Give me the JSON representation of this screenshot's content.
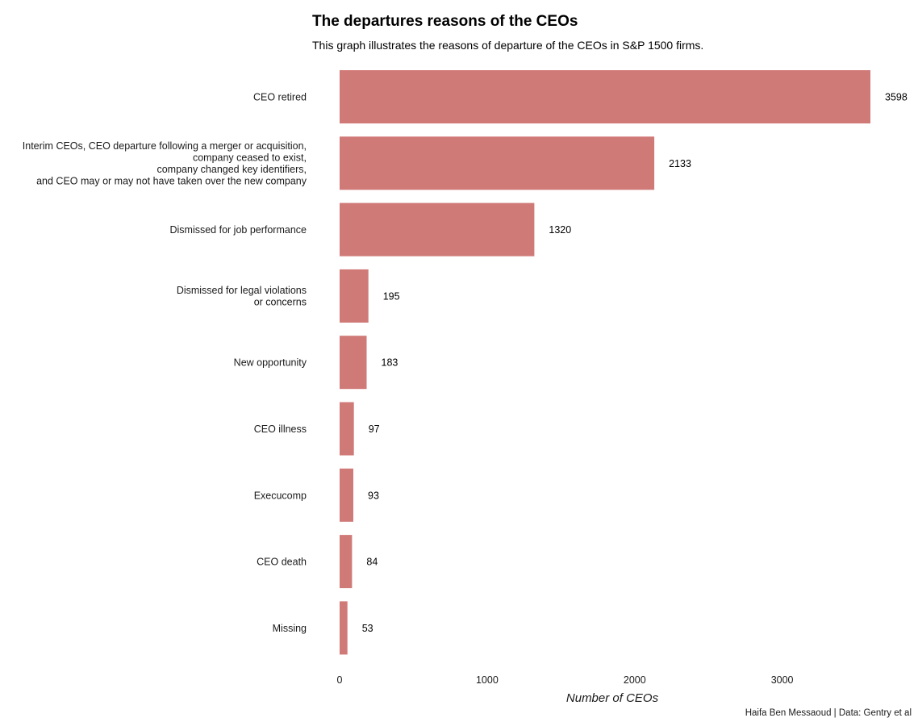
{
  "chart_data": {
    "type": "bar",
    "orientation": "horizontal",
    "title": "The departures reasons of the CEOs",
    "subtitle": "This graph illustrates the reasons of departure of the CEOs in S&P 1500 firms.",
    "xlabel": "Number of CEOs",
    "ylabel": "",
    "caption": "Haifa Ben Messaoud | Data: Gentry et al",
    "categories": [
      [
        "CEO retired"
      ],
      [
        "Interim CEOs, CEO departure following a merger or acquisition,",
        "company ceased to exist,",
        "company changed key identifiers,",
        "and CEO may or may not have taken over the new company"
      ],
      [
        "Dismissed for job performance"
      ],
      [
        "Dismissed for legal violations",
        "or concerns"
      ],
      [
        "New opportunity"
      ],
      [
        "CEO illness"
      ],
      [
        "Execucomp"
      ],
      [
        "CEO death"
      ],
      [
        "Missing"
      ]
    ],
    "values": [
      3598,
      2133,
      1320,
      195,
      183,
      97,
      93,
      84,
      53
    ],
    "xlim": [
      0,
      3598
    ],
    "xticks": [
      0,
      1000,
      2000,
      3000
    ],
    "grid": false,
    "legend": "none",
    "bar_color": "#d07a78"
  }
}
